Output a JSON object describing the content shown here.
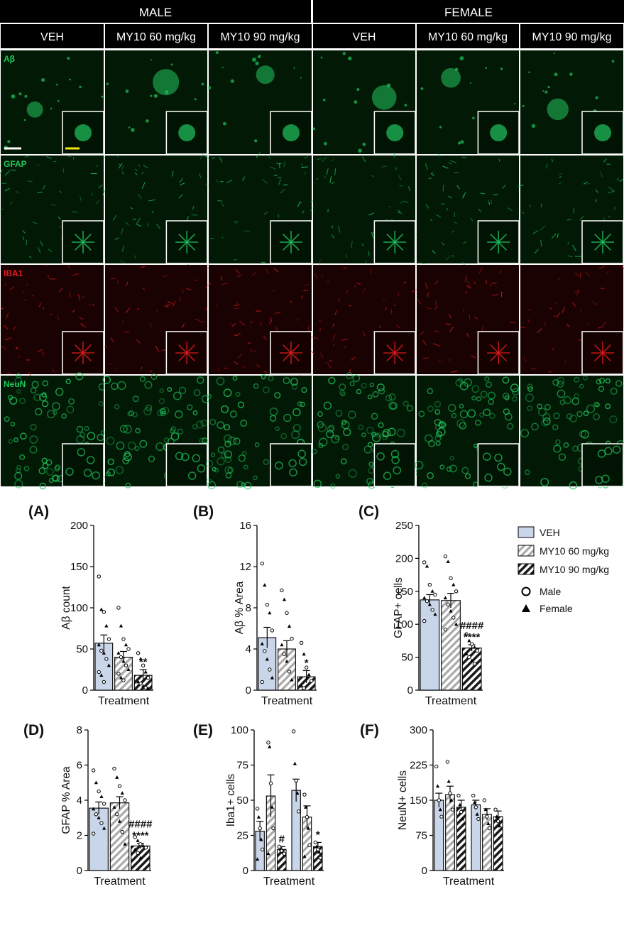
{
  "groups": [
    "MALE",
    "FEMALE"
  ],
  "columns": [
    "VEH",
    "MY10 60 mg/kg",
    "MY10 90 mg/kg",
    "VEH",
    "MY10 60 mg/kg",
    "MY10 90 mg/kg"
  ],
  "rows": [
    {
      "label": "Aβ",
      "color": "#22c55e",
      "kind": "plaque"
    },
    {
      "label": "GFAP",
      "color": "#22c55e",
      "kind": "astro"
    },
    {
      "label": "IBA1",
      "color": "#e11d1d",
      "kind": "micro"
    },
    {
      "label": "NeuN",
      "color": "#22c55e",
      "kind": "neuron"
    }
  ],
  "scale_bar_colors": [
    "#ffffff",
    "#f5e60a"
  ],
  "legend": {
    "treatments": [
      "VEH",
      "MY10 60 mg/kg",
      "MY10 90 mg/kg"
    ],
    "sexes": [
      "Male",
      "Female"
    ]
  },
  "colors": {
    "veh": "#c9d6ea",
    "hatch": "#a9a9a9",
    "high": "#1a1a1a",
    "header_bg": "#000000"
  },
  "chart_data": [
    {
      "panel": "(A)",
      "type": "bar",
      "ylabel": "Aβ count",
      "xlabel": "Treatment",
      "ylim": [
        0,
        200
      ],
      "yticks": [
        0,
        50,
        100,
        150,
        200
      ],
      "categories": [
        "VEH",
        "MY10 60 mg/kg",
        "MY10 90 mg/kg"
      ],
      "values": [
        57,
        40,
        18
      ],
      "sem": [
        10,
        7,
        7
      ],
      "annotations": [
        {
          "bar": 2,
          "lines": [
            "**"
          ]
        }
      ],
      "points": [
        [
          138,
          98,
          95,
          78,
          62,
          55,
          48,
          45,
          38,
          30,
          22,
          18,
          10
        ],
        [
          100,
          78,
          62,
          55,
          50,
          45,
          40,
          35,
          30,
          25,
          20,
          15,
          12
        ],
        [
          45,
          38,
          30,
          22,
          15,
          10,
          8,
          5,
          3,
          2
        ]
      ]
    },
    {
      "panel": "(B)",
      "type": "bar",
      "ylabel": "Aβ % Area",
      "xlabel": "Treatment",
      "ylim": [
        0,
        16
      ],
      "yticks": [
        0,
        4,
        8,
        12,
        16
      ],
      "categories": [
        "VEH",
        "MY10 60 mg/kg",
        "MY10 90 mg/kg"
      ],
      "values": [
        5.1,
        4.0,
        1.3
      ],
      "sem": [
        1.0,
        0.8,
        0.6
      ],
      "annotations": [
        {
          "bar": 2,
          "lines": [
            "*"
          ]
        }
      ],
      "points": [
        [
          12.3,
          10.2,
          8.3,
          7.5,
          5.8,
          4.5,
          3.8,
          3.0,
          2.0,
          1.2,
          0.8
        ],
        [
          9.7,
          8.8,
          7.5,
          6.2,
          5.0,
          4.4,
          3.5,
          2.8,
          1.8,
          1.0
        ],
        [
          4.6,
          3.5,
          2.2,
          1.5,
          0.9,
          0.4,
          0.2
        ]
      ]
    },
    {
      "panel": "(C)",
      "type": "bar",
      "ylabel": "GFAP+ cells",
      "xlabel": "Treatment",
      "ylim": [
        0,
        250
      ],
      "yticks": [
        0,
        50,
        100,
        150,
        200,
        250
      ],
      "categories": [
        "VEH",
        "MY10 60 mg/kg",
        "MY10 90 mg/kg"
      ],
      "values": [
        137,
        136,
        64
      ],
      "sem": [
        8,
        11,
        5
      ],
      "annotations": [
        {
          "bar": 2,
          "lines": [
            "####",
            "****"
          ]
        }
      ],
      "points": [
        [
          194,
          188,
          160,
          150,
          145,
          140,
          135,
          130,
          122,
          115,
          105
        ],
        [
          203,
          195,
          170,
          160,
          150,
          140,
          130,
          120,
          110,
          100,
          92
        ],
        [
          85,
          75,
          70,
          65,
          60,
          55,
          50,
          45,
          40
        ]
      ]
    },
    {
      "panel": "(D)",
      "type": "bar",
      "ylabel": "GFAP % Area",
      "xlabel": "Treatment",
      "ylim": [
        0,
        8
      ],
      "yticks": [
        0,
        2,
        4,
        6,
        8
      ],
      "categories": [
        "VEH",
        "MY10 60 mg/kg",
        "MY10 90 mg/kg"
      ],
      "values": [
        3.55,
        3.85,
        1.4
      ],
      "sem": [
        0.35,
        0.35,
        0.15
      ],
      "annotations": [
        {
          "bar": 2,
          "lines": [
            "####",
            "****"
          ]
        }
      ],
      "points": [
        [
          5.7,
          5.0,
          4.5,
          4.2,
          3.8,
          3.5,
          3.2,
          3.0,
          2.7,
          2.4,
          2.1
        ],
        [
          5.8,
          5.3,
          4.8,
          4.4,
          4.0,
          3.6,
          3.2,
          2.8,
          2.2,
          1.5
        ],
        [
          1.9,
          1.7,
          1.5,
          1.4,
          1.3,
          1.2,
          1.0,
          0.7
        ]
      ]
    },
    {
      "panel": "(E)",
      "type": "bar",
      "ylabel": "Iba1+ cells",
      "xlabel": "Treatment",
      "ylim": [
        0,
        100
      ],
      "yticks": [
        0,
        25,
        50,
        75,
        100
      ],
      "categories": [
        "Male VEH",
        "Male MY10 60 mg/kg",
        "Male MY10 90 mg/kg",
        "Female VEH",
        "Female MY10 60 mg/kg",
        "Female MY10 90 mg/kg"
      ],
      "values": [
        28,
        53,
        15,
        57,
        38,
        17
      ],
      "sem": [
        7,
        15,
        2,
        8,
        8,
        3
      ],
      "annotations": [
        {
          "bar": 2,
          "lines": [
            "#"
          ]
        },
        {
          "bar": 5,
          "lines": [
            "*"
          ]
        }
      ],
      "points": [
        [
          44,
          38,
          30,
          22,
          15,
          8
        ],
        [
          91,
          88,
          62,
          45,
          30,
          12
        ],
        [
          17,
          15,
          14,
          13,
          12
        ],
        [
          99,
          76,
          64,
          55,
          42
        ],
        [
          54,
          45,
          38,
          30,
          18,
          10
        ],
        [
          20,
          17,
          15,
          13,
          9
        ]
      ]
    },
    {
      "panel": "(F)",
      "type": "bar",
      "ylabel": "NeuN+ cells",
      "xlabel": "Treatment",
      "ylim": [
        0,
        300
      ],
      "yticks": [
        0,
        75,
        150,
        225,
        300
      ],
      "categories": [
        "Male VEH",
        "Male MY10 60 mg/kg",
        "Male MY10 90 mg/kg",
        "Female VEH",
        "Female MY10 60 mg/kg",
        "Female MY10 90 mg/kg"
      ],
      "values": [
        150,
        162,
        135,
        140,
        120,
        115
      ],
      "sem": [
        15,
        18,
        15,
        10,
        12,
        12
      ],
      "annotations": [],
      "points": [
        [
          222,
          180,
          150,
          130,
          115
        ],
        [
          232,
          190,
          165,
          150,
          130
        ],
        [
          160,
          140,
          125,
          110
        ],
        [
          160,
          145,
          135,
          120,
          110
        ],
        [
          150,
          130,
          115,
          100,
          90
        ],
        [
          130,
          115,
          105,
          95
        ]
      ]
    }
  ]
}
